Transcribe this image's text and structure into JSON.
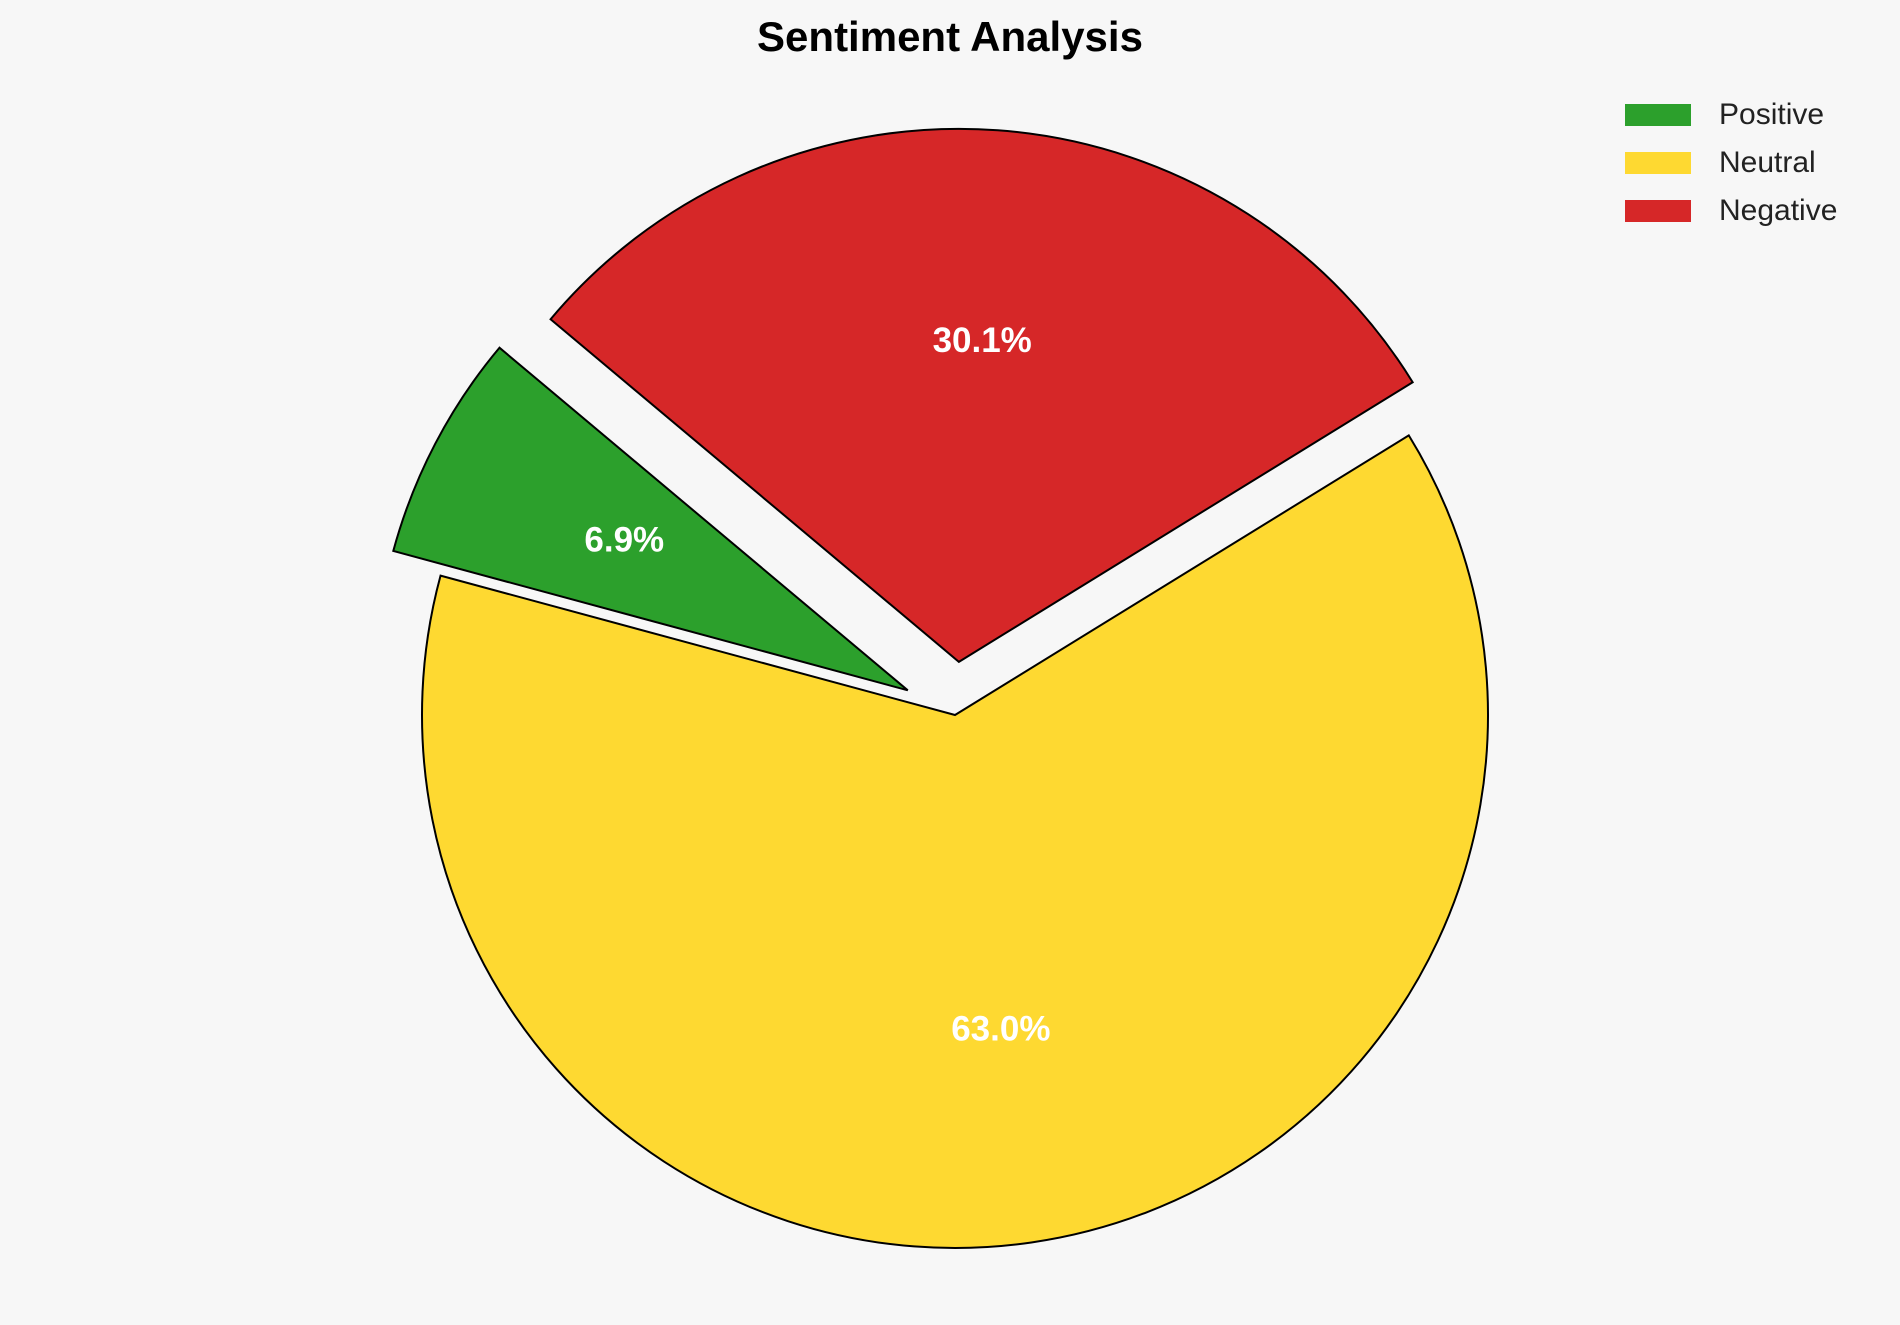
{
  "chart_data": {
    "type": "pie",
    "title": "Sentiment Analysis",
    "categories": [
      "Positive",
      "Neutral",
      "Negative"
    ],
    "values": [
      6.9,
      63.0,
      30.1
    ],
    "value_labels": [
      "6.9%",
      "63.0%",
      "30.1%"
    ],
    "colors": [
      "#2ca02c",
      "#fed931",
      "#d62728"
    ],
    "explode": [
      0.1,
      0,
      0.1
    ],
    "startangle": 140,
    "legend": "upper right"
  }
}
